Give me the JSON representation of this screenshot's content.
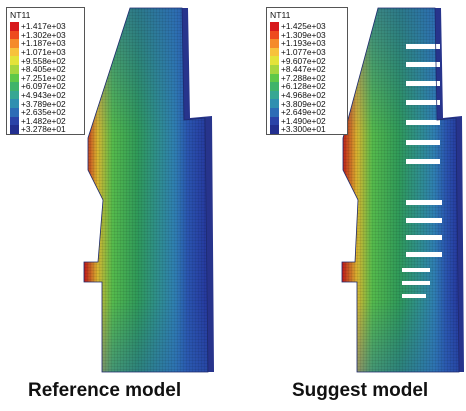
{
  "panels": [
    {
      "caption": "Reference model",
      "legend": {
        "title": "NT11",
        "values": [
          "+1.417e+03",
          "+1.302e+03",
          "+1.187e+03",
          "+1.071e+03",
          "+9.558e+02",
          "+8.405e+02",
          "+7.251e+02",
          "+6.097e+02",
          "+4.943e+02",
          "+3.789e+02",
          "+2.635e+02",
          "+1.482e+02",
          "+3.278e+01"
        ]
      }
    },
    {
      "caption": "Suggest model",
      "legend": {
        "title": "NT11",
        "values": [
          "+1.425e+03",
          "+1.309e+03",
          "+1.193e+03",
          "+1.077e+03",
          "+9.607e+02",
          "+8.447e+02",
          "+7.288e+02",
          "+6.128e+02",
          "+4.968e+02",
          "+3.809e+02",
          "+2.649e+02",
          "+1.490e+02",
          "+3.300e+01"
        ]
      }
    }
  ],
  "colors": {
    "scale": [
      "#d7191c",
      "#ee4b1f",
      "#f58b2a",
      "#f7c23c",
      "#e3e33a",
      "#a7d63f",
      "#5fc848",
      "#3fb36a",
      "#37a793",
      "#2f8fb0",
      "#2c6cb6",
      "#2a43a8",
      "#222f8f"
    ]
  }
}
